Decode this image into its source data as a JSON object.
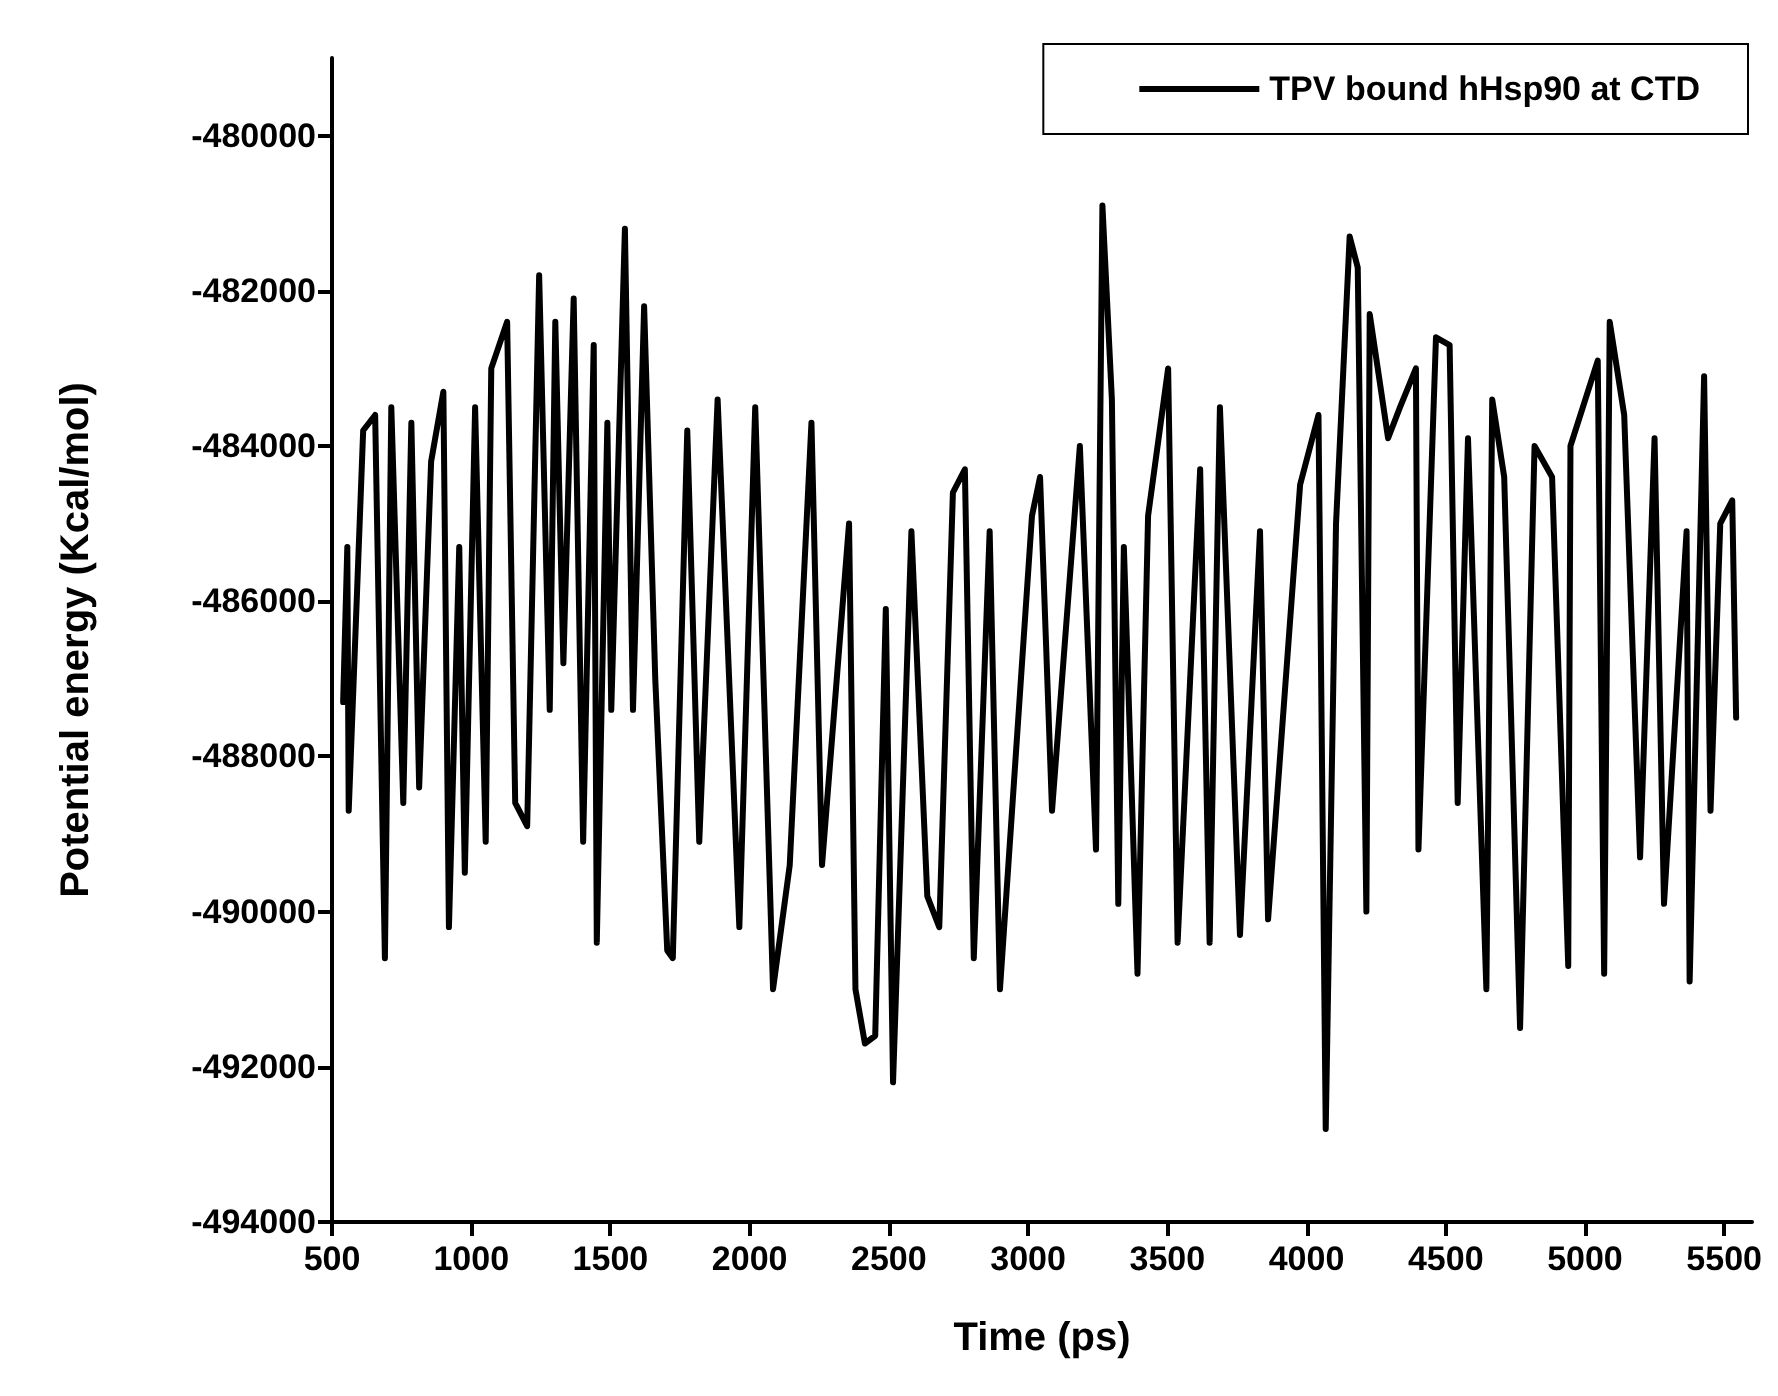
{
  "chart_data": {
    "type": "line",
    "xlabel": "Time (ps)",
    "ylabel": "Potential energy (Kcal/mol)",
    "xlim": [
      500,
      5600
    ],
    "xticks": [
      500,
      1000,
      1500,
      2000,
      2500,
      3000,
      3500,
      4000,
      4500,
      5000,
      5500
    ],
    "ylim": [
      -494000,
      -479000
    ],
    "yticks": [
      -494000,
      -492000,
      -490000,
      -488000,
      -486000,
      -484000,
      -482000,
      -480000
    ],
    "grid": false,
    "legend": "top right",
    "marker": "none",
    "line_style": "solid",
    "series": [
      {
        "name": "TPV bound hHsp90 at CTD",
        "color": "#000000",
        "x": [
          540,
          555,
          560,
          612,
          655,
          690,
          713,
          756,
          785,
          813,
          856,
          900,
          920,
          957,
          977,
          1014,
          1052,
          1072,
          1129,
          1158,
          1201,
          1244,
          1282,
          1302,
          1331,
          1368,
          1402,
          1440,
          1451,
          1489,
          1503,
          1552,
          1581,
          1621,
          1661,
          1704,
          1724,
          1776,
          1819,
          1885,
          1963,
          2020,
          2084,
          2144,
          2222,
          2260,
          2357,
          2380,
          2414,
          2451,
          2489,
          2515,
          2581,
          2638,
          2681,
          2730,
          2773,
          2805,
          2862,
          2899,
          3014,
          3043,
          3086,
          3186,
          3244,
          3267,
          3301,
          3324,
          3344,
          3393,
          3431,
          3503,
          3537,
          3618,
          3652,
          3689,
          3761,
          3833,
          3862,
          3977,
          4043,
          4069,
          4106,
          4155,
          4184,
          4215,
          4227,
          4293,
          4336,
          4393,
          4402,
          4465,
          4514,
          4543,
          4580,
          4646,
          4667,
          4710,
          4767,
          4819,
          4882,
          4940,
          4948,
          5046,
          5069,
          5089,
          5141,
          5198,
          5250,
          5284,
          5365,
          5376,
          5428,
          5451,
          5486,
          5529,
          5543
        ],
        "values": [
          -487300,
          -485300,
          -488700,
          -483800,
          -483600,
          -490600,
          -483500,
          -488600,
          -483700,
          -488400,
          -484200,
          -483300,
          -490200,
          -485300,
          -489500,
          -483500,
          -489100,
          -483000,
          -482400,
          -488600,
          -488900,
          -481800,
          -487400,
          -482400,
          -486800,
          -482100,
          -489100,
          -482700,
          -490400,
          -483700,
          -487400,
          -481200,
          -487400,
          -482200,
          -487000,
          -490500,
          -490600,
          -483800,
          -489100,
          -483400,
          -490200,
          -483500,
          -491000,
          -489400,
          -483700,
          -489400,
          -485000,
          -491000,
          -491700,
          -491600,
          -486100,
          -492200,
          -485100,
          -489800,
          -490200,
          -484600,
          -484300,
          -490600,
          -485100,
          -491000,
          -484900,
          -484400,
          -488700,
          -484000,
          -489200,
          -480900,
          -483400,
          -489900,
          -485300,
          -490800,
          -484900,
          -483000,
          -490400,
          -484300,
          -490400,
          -483500,
          -490300,
          -485100,
          -490100,
          -484500,
          -483600,
          -492800,
          -485000,
          -481300,
          -481700,
          -490000,
          -482300,
          -483900,
          -483500,
          -483000,
          -489200,
          -482600,
          -482700,
          -488600,
          -483900,
          -491000,
          -483400,
          -484400,
          -491500,
          -484000,
          -484400,
          -490700,
          -484000,
          -482900,
          -490800,
          -482400,
          -483600,
          -489300,
          -483900,
          -489900,
          -485100,
          -490900,
          -483100,
          -488700,
          -485000,
          -484700,
          -487500
        ]
      }
    ]
  }
}
